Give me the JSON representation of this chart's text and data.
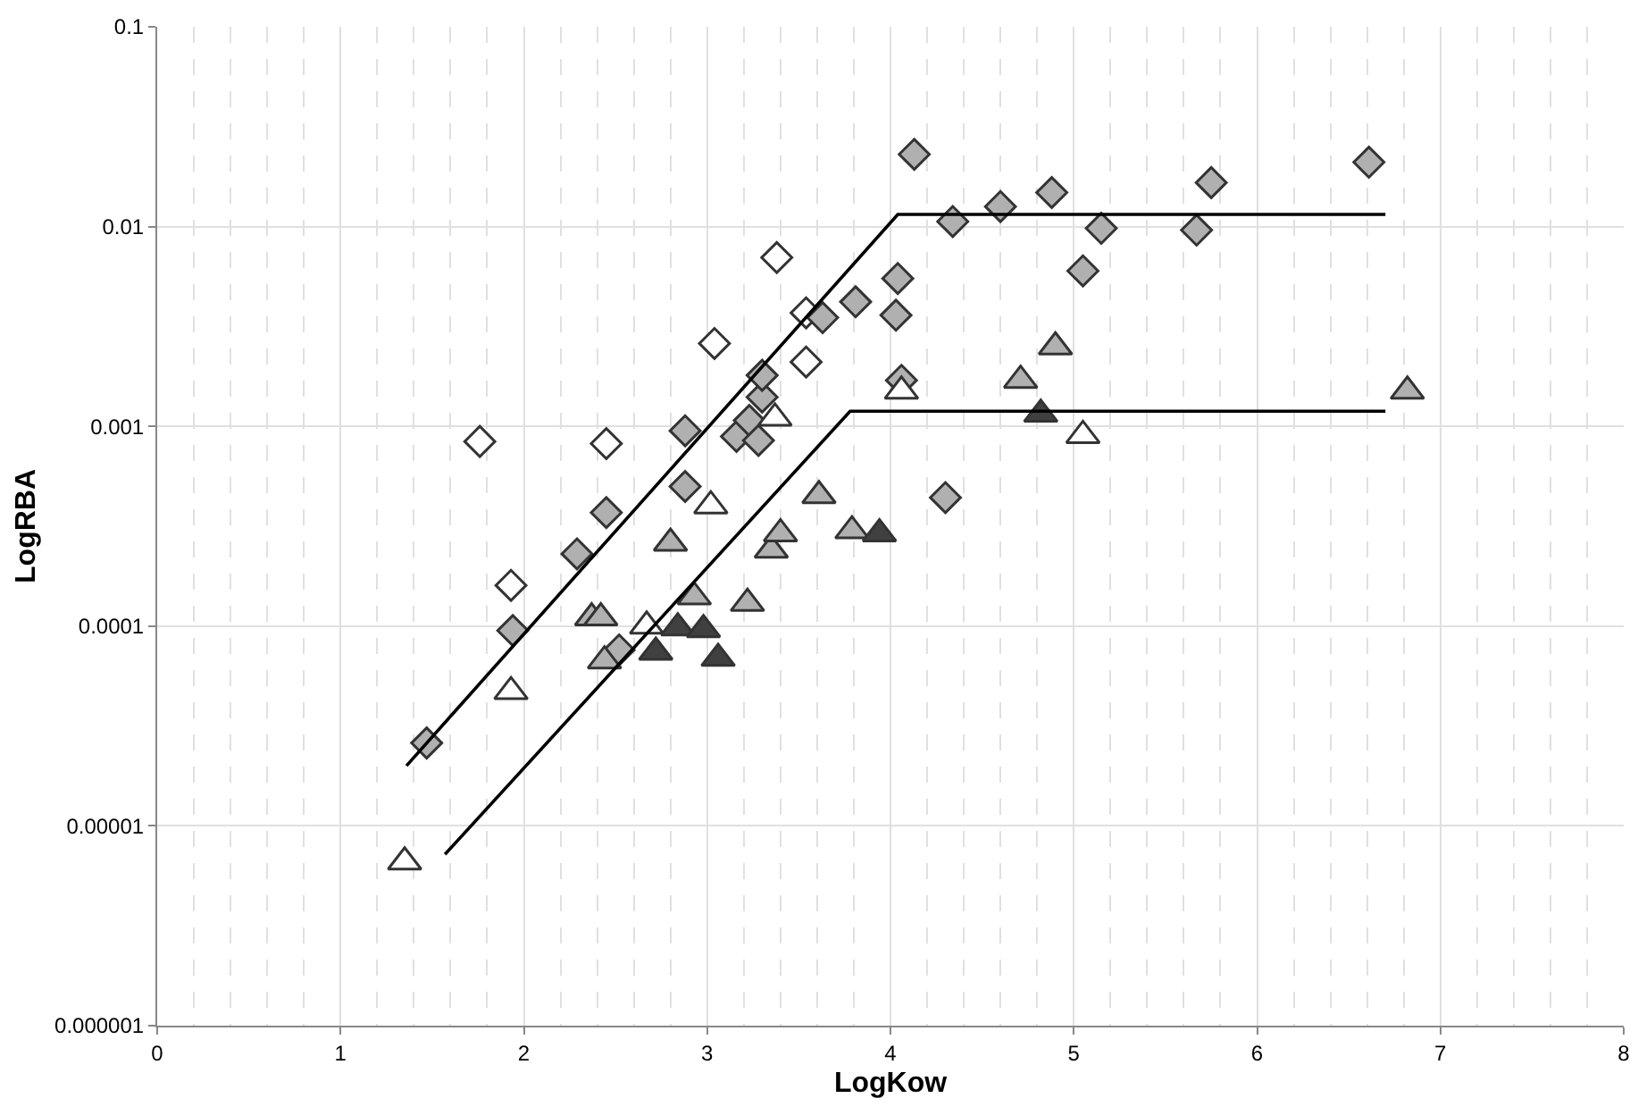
{
  "chart_data": {
    "type": "scatter",
    "xlabel": "LogKow",
    "ylabel": "LogRBA",
    "log": "y",
    "grid": true,
    "xlim": [
      0,
      8
    ],
    "xticks": [
      0,
      1,
      2,
      3,
      4,
      5,
      6,
      7,
      8
    ],
    "ylim": [
      1e-06,
      0.1
    ],
    "yticks": [
      {
        "value": 1e-06,
        "label": "0.000001"
      },
      {
        "value": 1e-05,
        "label": "0.00001"
      },
      {
        "value": 0.0001,
        "label": "0.0001"
      },
      {
        "value": 0.001,
        "label": "0.001"
      },
      {
        "value": 0.01,
        "label": "0.01"
      },
      {
        "value": 0.1,
        "label": "0.1"
      }
    ],
    "series": [
      {
        "marker": "diamond",
        "color": "#ffffff",
        "x": [
          1.76,
          2.45,
          1.93,
          3.38,
          3.04,
          3.54,
          3.54
        ],
        "values": [
          0.00084,
          0.00082,
          0.00016,
          0.007,
          0.0026,
          0.0037,
          0.0021
        ]
      },
      {
        "marker": "diamond",
        "color": "#b0b0b0",
        "x": [
          1.47,
          1.94,
          2.29,
          2.45,
          2.52,
          2.88,
          2.88,
          3.16,
          3.23,
          3.28,
          3.3,
          3.3,
          3.63,
          3.81,
          4.03,
          4.04,
          4.06,
          4.13,
          4.3,
          4.34,
          4.6,
          4.88,
          5.05,
          5.15,
          5.67,
          5.75,
          6.61
        ],
        "values": [
          2.6e-05,
          9.5e-05,
          0.00023,
          0.00037,
          7.6e-05,
          0.0005,
          0.00095,
          0.00089,
          0.00107,
          0.00085,
          0.0014,
          0.0018,
          0.0035,
          0.0042,
          0.0036,
          0.0055,
          0.0017,
          0.023,
          0.00044,
          0.0106,
          0.0126,
          0.0148,
          0.006,
          0.0098,
          0.0096,
          0.0166,
          0.021
        ]
      },
      {
        "marker": "triangle",
        "color": "#ffffff",
        "x": [
          1.35,
          1.93,
          2.67,
          3.02,
          3.37,
          4.06,
          5.05
        ],
        "values": [
          6.6e-06,
          4.7e-05,
          0.0001,
          0.0004,
          0.0011,
          0.0015,
          0.0009
        ]
      },
      {
        "marker": "triangle",
        "color": "#b0b0b0",
        "x": [
          2.37,
          2.42,
          2.44,
          2.8,
          2.93,
          3.22,
          3.35,
          3.4,
          3.61,
          3.79,
          4.71,
          4.9,
          6.82
        ],
        "values": [
          0.00011,
          0.00011,
          6.7e-05,
          0.00026,
          0.00014,
          0.00013,
          0.00024,
          0.00029,
          0.00045,
          0.0003,
          0.0017,
          0.0025,
          0.0015
        ]
      },
      {
        "marker": "triangle",
        "color": "#404040",
        "x": [
          2.72,
          2.84,
          2.98,
          3.06,
          3.94,
          4.82
        ],
        "values": [
          7.4e-05,
          9.8e-05,
          9.6e-05,
          6.9e-05,
          0.00029,
          0.00115
        ]
      },
      {
        "type": "line",
        "marker": "none",
        "color": "#000000",
        "x": [
          1.36,
          4.04,
          6.7
        ],
        "values": [
          2e-05,
          0.0115,
          0.0115
        ]
      },
      {
        "type": "line",
        "marker": "none",
        "color": "#000000",
        "x": [
          1.57,
          3.78,
          6.7
        ],
        "values": [
          7.2e-06,
          0.00119,
          0.00119
        ]
      }
    ]
  }
}
